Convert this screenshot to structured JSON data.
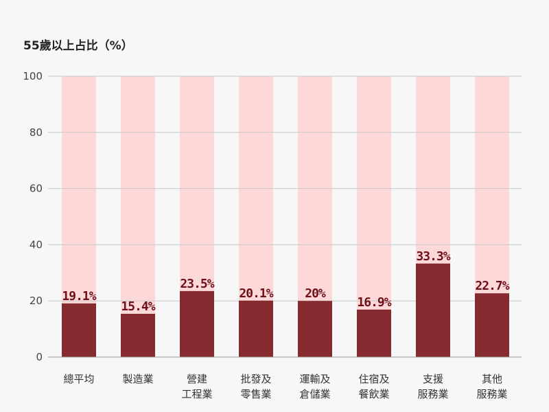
{
  "chart_data": {
    "type": "bar",
    "ylabel": "55歲以上占比（%）",
    "ylim": [
      0,
      100
    ],
    "yticks": [
      0,
      20,
      40,
      60,
      80,
      100
    ],
    "grid": true,
    "categories": [
      [
        "總平均"
      ],
      [
        "製造業"
      ],
      [
        "營建",
        "工程業"
      ],
      [
        "批發及",
        "零售業"
      ],
      [
        "運輸及",
        "倉儲業"
      ],
      [
        "住宿及",
        "餐飲業"
      ],
      [
        "支援",
        "服務業"
      ],
      [
        "其他",
        "服務業"
      ]
    ],
    "values": [
      19.1,
      15.4,
      23.5,
      20.1,
      20,
      16.9,
      33.3,
      22.7
    ],
    "value_labels": [
      "19.1%",
      "15.4%",
      "23.5%",
      "20.1%",
      "20%",
      "16.9%",
      "33.3%",
      "22.7%"
    ],
    "colors": {
      "bar": "#852a2f",
      "background_bar": "#fdd8d8",
      "grid": "#c8c8c8",
      "label": "#6e1018"
    }
  }
}
